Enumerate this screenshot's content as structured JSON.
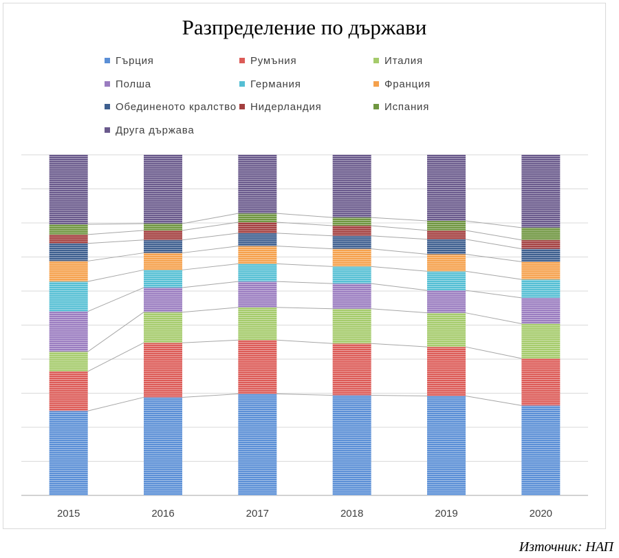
{
  "chart_data": {
    "type": "bar",
    "stacked": true,
    "percent": true,
    "title": "Разпределение  по държави",
    "xlabel": "",
    "ylabel": "",
    "ylim": [
      0,
      100
    ],
    "grid": true,
    "legend_position": "top",
    "categories": [
      "2015",
      "2016",
      "2017",
      "2018",
      "2019",
      "2020"
    ],
    "series": [
      {
        "name": "Гърция",
        "color": "#5b8fd6",
        "values": [
          24.8,
          28.8,
          29.8,
          29.4,
          29.2,
          26.4
        ]
      },
      {
        "name": "Румъния",
        "color": "#dc5b57",
        "values": [
          11.6,
          16.0,
          15.8,
          15.2,
          14.4,
          13.8
        ]
      },
      {
        "name": "Италия",
        "color": "#a5cb6b",
        "values": [
          5.8,
          9.0,
          9.6,
          10.2,
          10.0,
          10.2
        ]
      },
      {
        "name": "Полша",
        "color": "#9a7cc0",
        "values": [
          11.8,
          7.2,
          7.6,
          7.4,
          6.6,
          7.6
        ]
      },
      {
        "name": "Германия",
        "color": "#55bfd4",
        "values": [
          8.8,
          5.2,
          5.2,
          5.0,
          5.6,
          5.4
        ]
      },
      {
        "name": "Франция",
        "color": "#f5a14c",
        "values": [
          6.0,
          5.0,
          5.2,
          5.2,
          5.0,
          5.2
        ]
      },
      {
        "name": "Обединеното кралство",
        "color": "#3e5f8f",
        "values": [
          5.2,
          3.8,
          3.8,
          3.8,
          4.4,
          3.8
        ]
      },
      {
        "name": "Нидерландия",
        "color": "#a33e3e",
        "values": [
          2.6,
          2.8,
          3.2,
          3.0,
          2.6,
          2.6
        ]
      },
      {
        "name": "Испания",
        "color": "#6f9640",
        "values": [
          3.0,
          2.0,
          2.6,
          2.4,
          2.8,
          3.6
        ]
      },
      {
        "name": "Друга държава",
        "color": "#6a5a8c",
        "values": [
          20.4,
          20.2,
          17.2,
          18.4,
          19.4,
          21.4
        ]
      }
    ]
  },
  "source": "Източник: НАП"
}
